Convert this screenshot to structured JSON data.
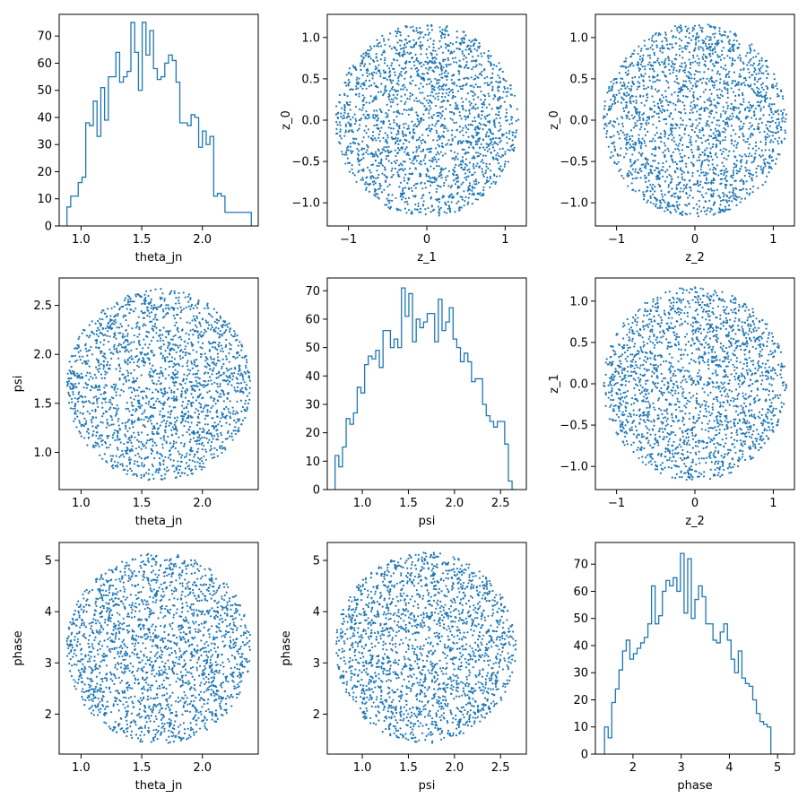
{
  "figure": {
    "background": "#ffffff",
    "series_color": "#1f77b4"
  },
  "chart_data": [
    {
      "id": "p00",
      "type": "histogram",
      "xlabel": "theta_jn",
      "ylabel": "",
      "xlim": [
        0.82,
        2.46
      ],
      "ylim": [
        0,
        78
      ],
      "xticks": [
        1.0,
        1.5,
        2.0
      ],
      "xtick_labels": [
        "1.0",
        "1.5",
        "2.0"
      ],
      "yticks": [
        0,
        10,
        20,
        30,
        40,
        50,
        60,
        70
      ],
      "ytick_labels": [
        "0",
        "10",
        "20",
        "30",
        "40",
        "50",
        "60",
        "70"
      ],
      "bin_edges": [
        0.884,
        0.915,
        0.946,
        0.977,
        1.008,
        1.039,
        1.07,
        1.101,
        1.132,
        1.163,
        1.194,
        1.225,
        1.256,
        1.287,
        1.318,
        1.349,
        1.38,
        1.411,
        1.442,
        1.473,
        1.504,
        1.535,
        1.566,
        1.597,
        1.628,
        1.659,
        1.69,
        1.721,
        1.752,
        1.783,
        1.814,
        1.845,
        1.876,
        1.907,
        1.938,
        1.969,
        2.0,
        2.031,
        2.062,
        2.093,
        2.124,
        2.155,
        2.186,
        2.217,
        2.248,
        2.279,
        2.31,
        2.341,
        2.372,
        2.403
      ],
      "counts": [
        7,
        11,
        11,
        16,
        18,
        38,
        37,
        46,
        33,
        51,
        39,
        55,
        55,
        64,
        53,
        55,
        57,
        75,
        64,
        50,
        75,
        63,
        72,
        58,
        54,
        55,
        60,
        63,
        61,
        53,
        38,
        38,
        37,
        41,
        40,
        29,
        35,
        30,
        33,
        11,
        12,
        11,
        5,
        5,
        5,
        5,
        5,
        5,
        5
      ]
    },
    {
      "id": "p01",
      "type": "scatter",
      "xlabel": "z_1",
      "ylabel": "z_0",
      "xlim": [
        -1.27,
        1.27
      ],
      "ylim": [
        -1.28,
        1.28
      ],
      "xticks": [
        -1,
        0,
        1
      ],
      "xtick_labels": [
        "−1",
        "0",
        "1"
      ],
      "yticks": [
        -1.0,
        -0.5,
        0.0,
        0.5,
        1.0
      ],
      "ytick_labels": [
        "−1.0",
        "−0.5",
        "0.0",
        "0.5",
        "1.0"
      ],
      "distribution": "uniform-disk",
      "center": [
        0.0,
        0.0
      ],
      "radius": [
        1.17,
        1.17
      ],
      "n_points": 2000
    },
    {
      "id": "p02",
      "type": "scatter",
      "xlabel": "z_2",
      "ylabel": "z_0",
      "xlim": [
        -1.27,
        1.27
      ],
      "ylim": [
        -1.28,
        1.28
      ],
      "xticks": [
        -1,
        0,
        1
      ],
      "xtick_labels": [
        "−1",
        "0",
        "1"
      ],
      "yticks": [
        -1.0,
        -0.5,
        0.0,
        0.5,
        1.0
      ],
      "ytick_labels": [
        "−1.0",
        "−0.5",
        "0.0",
        "0.5",
        "1.0"
      ],
      "distribution": "uniform-disk",
      "center": [
        0.0,
        0.0
      ],
      "radius": [
        1.17,
        1.17
      ],
      "n_points": 2000
    },
    {
      "id": "p10",
      "type": "scatter",
      "xlabel": "theta_jn",
      "ylabel": "psi",
      "xlim": [
        0.82,
        2.46
      ],
      "ylim": [
        0.62,
        2.78
      ],
      "xticks": [
        1.0,
        1.5,
        2.0
      ],
      "xtick_labels": [
        "1.0",
        "1.5",
        "2.0"
      ],
      "yticks": [
        1.0,
        1.5,
        2.0,
        2.5
      ],
      "ytick_labels": [
        "1.0",
        "1.5",
        "2.0",
        "2.5"
      ],
      "distribution": "uniform-disk",
      "center": [
        1.64,
        1.69
      ],
      "radius": [
        0.76,
        0.98
      ],
      "n_points": 2000
    },
    {
      "id": "p11",
      "type": "histogram",
      "xlabel": "psi",
      "ylabel": "",
      "xlim": [
        0.62,
        2.78
      ],
      "ylim": [
        0,
        74.5
      ],
      "xticks": [
        1.0,
        1.5,
        2.0,
        2.5
      ],
      "xtick_labels": [
        "1.0",
        "1.5",
        "2.0",
        "2.5"
      ],
      "yticks": [
        0,
        10,
        20,
        30,
        40,
        50,
        60,
        70
      ],
      "ytick_labels": [
        "0",
        "10",
        "20",
        "30",
        "40",
        "50",
        "60",
        "70"
      ],
      "bin_edges": [
        0.705,
        0.745,
        0.785,
        0.825,
        0.865,
        0.905,
        0.945,
        0.985,
        1.025,
        1.065,
        1.105,
        1.145,
        1.185,
        1.225,
        1.265,
        1.305,
        1.345,
        1.385,
        1.425,
        1.465,
        1.505,
        1.545,
        1.585,
        1.625,
        1.665,
        1.705,
        1.745,
        1.785,
        1.825,
        1.865,
        1.905,
        1.945,
        1.985,
        2.025,
        2.065,
        2.105,
        2.145,
        2.185,
        2.225,
        2.265,
        2.305,
        2.345,
        2.385,
        2.425,
        2.465,
        2.505,
        2.545,
        2.585,
        2.625,
        2.665
      ],
      "counts": [
        12,
        8,
        15,
        25,
        23,
        27,
        36,
        34,
        44,
        47,
        46,
        49,
        43,
        56,
        56,
        50,
        53,
        50,
        71,
        61,
        69,
        52,
        60,
        57,
        59,
        62,
        62,
        52,
        67,
        56,
        59,
        64,
        53,
        50,
        45,
        48,
        45,
        38,
        39,
        39,
        30,
        26,
        24,
        22,
        24,
        24,
        16,
        3,
        0
      ]
    },
    {
      "id": "p12",
      "type": "scatter",
      "xlabel": "z_2",
      "ylabel": "z_1",
      "xlim": [
        -1.27,
        1.27
      ],
      "ylim": [
        -1.28,
        1.28
      ],
      "xticks": [
        -1,
        0,
        1
      ],
      "xtick_labels": [
        "−1",
        "0",
        "1"
      ],
      "yticks": [
        -1.0,
        -0.5,
        0.0,
        0.5,
        1.0
      ],
      "ytick_labels": [
        "−1.0",
        "−0.5",
        "0.0",
        "0.5",
        "1.0"
      ],
      "distribution": "uniform-disk",
      "center": [
        0.0,
        0.0
      ],
      "radius": [
        1.17,
        1.17
      ],
      "n_points": 2000
    },
    {
      "id": "p20",
      "type": "scatter",
      "xlabel": "theta_jn",
      "ylabel": "phase",
      "xlim": [
        0.82,
        2.46
      ],
      "ylim": [
        1.22,
        5.35
      ],
      "xticks": [
        1.0,
        1.5,
        2.0
      ],
      "xtick_labels": [
        "1.0",
        "1.5",
        "2.0"
      ],
      "yticks": [
        2,
        3,
        4,
        5
      ],
      "ytick_labels": [
        "2",
        "3",
        "4",
        "5"
      ],
      "distribution": "uniform-disk",
      "center": [
        1.64,
        3.29
      ],
      "radius": [
        0.76,
        1.87
      ],
      "n_points": 2000
    },
    {
      "id": "p21",
      "type": "scatter",
      "xlabel": "psi",
      "ylabel": "phase",
      "xlim": [
        0.62,
        2.78
      ],
      "ylim": [
        1.22,
        5.35
      ],
      "xticks": [
        1.0,
        1.5,
        2.0,
        2.5
      ],
      "xtick_labels": [
        "1.0",
        "1.5",
        "2.0",
        "2.5"
      ],
      "yticks": [
        2,
        3,
        4,
        5
      ],
      "ytick_labels": [
        "2",
        "3",
        "4",
        "5"
      ],
      "distribution": "uniform-disk",
      "center": [
        1.69,
        3.29
      ],
      "radius": [
        0.98,
        1.87
      ],
      "n_points": 2000
    },
    {
      "id": "p22",
      "type": "histogram",
      "xlabel": "phase",
      "ylabel": "",
      "xlim": [
        1.22,
        5.35
      ],
      "ylim": [
        0,
        78
      ],
      "xticks": [
        2,
        3,
        4,
        5
      ],
      "xtick_labels": [
        "2",
        "3",
        "4",
        "5"
      ],
      "yticks": [
        0,
        10,
        20,
        30,
        40,
        50,
        60,
        70
      ],
      "ytick_labels": [
        "0",
        "10",
        "20",
        "30",
        "40",
        "50",
        "60",
        "70"
      ],
      "bin_edges": [
        1.41,
        1.485,
        1.56,
        1.635,
        1.71,
        1.785,
        1.86,
        1.935,
        2.01,
        2.085,
        2.16,
        2.235,
        2.31,
        2.385,
        2.46,
        2.535,
        2.61,
        2.685,
        2.76,
        2.835,
        2.91,
        2.985,
        3.06,
        3.135,
        3.21,
        3.285,
        3.36,
        3.435,
        3.51,
        3.585,
        3.66,
        3.735,
        3.81,
        3.885,
        3.96,
        4.035,
        4.11,
        4.185,
        4.26,
        4.335,
        4.41,
        4.485,
        4.56,
        4.635,
        4.71,
        4.785,
        4.86,
        4.935,
        5.01,
        5.085,
        5.16
      ],
      "counts": [
        10,
        6,
        19,
        24,
        31,
        38,
        42,
        35,
        37,
        39,
        41,
        43,
        48,
        62,
        48,
        51,
        60,
        64,
        62,
        65,
        60,
        74,
        52,
        72,
        50,
        57,
        62,
        58,
        48,
        48,
        42,
        41,
        45,
        48,
        42,
        35,
        30,
        38,
        28,
        26,
        25,
        20,
        15,
        12,
        11,
        10,
        0,
        0,
        0,
        0
      ]
    }
  ]
}
